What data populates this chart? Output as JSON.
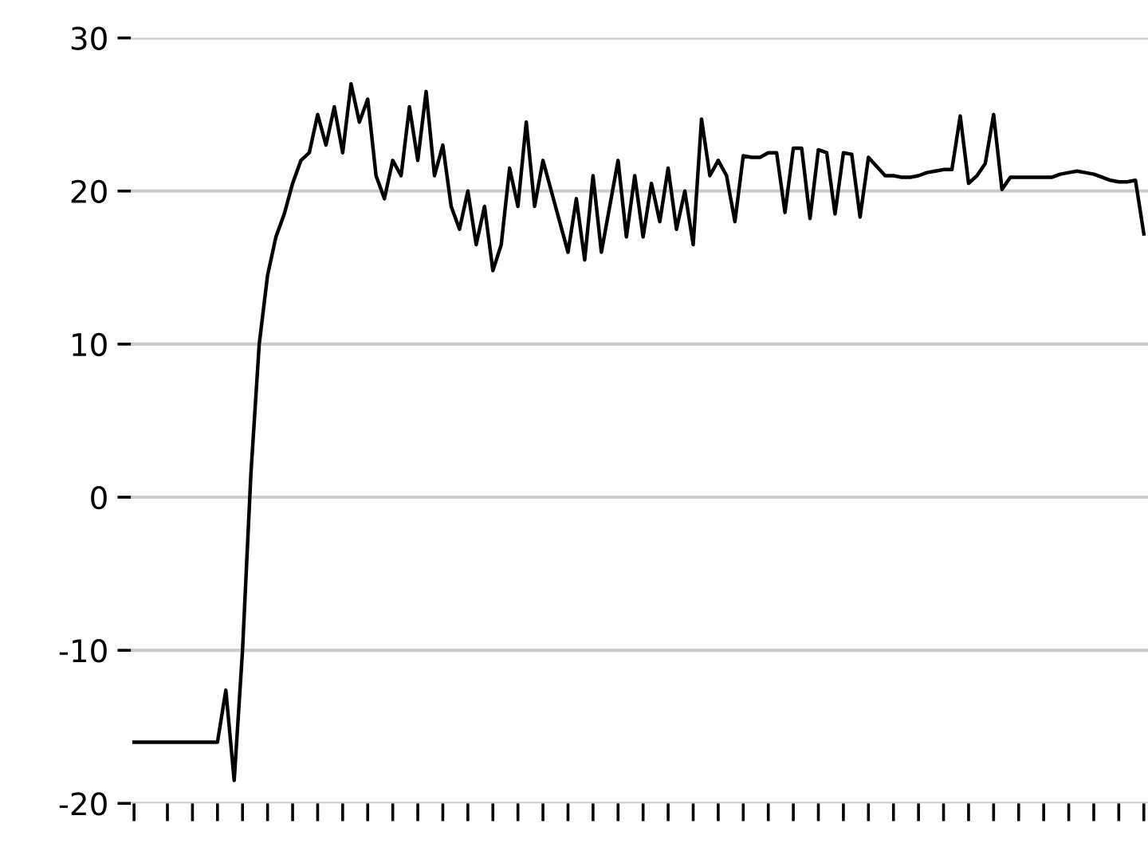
{
  "chart_data": {
    "type": "line",
    "categories": [
      null,
      null,
      null,
      null,
      null,
      null,
      null,
      null,
      null,
      null,
      null,
      null,
      null,
      null,
      null,
      null,
      null,
      null,
      null,
      null,
      null,
      null,
      null,
      null,
      null,
      null,
      null,
      null,
      null,
      null,
      null,
      null,
      null,
      null,
      null,
      null,
      null,
      null,
      null,
      null,
      null,
      null,
      null,
      null,
      null,
      null,
      null,
      null,
      null,
      null,
      null,
      null,
      null,
      null,
      null,
      null,
      null,
      null,
      null,
      null,
      null,
      null,
      null,
      null,
      null,
      null,
      null,
      null,
      null,
      null,
      null,
      null,
      null,
      null,
      null,
      null,
      null,
      null,
      null,
      null,
      null,
      null,
      null,
      null,
      null,
      null,
      null,
      null,
      null,
      null,
      null,
      null,
      null,
      null,
      null,
      null,
      null,
      null,
      null,
      null,
      null,
      null,
      null,
      null,
      null,
      null,
      null,
      null,
      null,
      null,
      null,
      null,
      null,
      null,
      null,
      null,
      null,
      null,
      null,
      null,
      null,
      null
    ],
    "series": [
      {
        "color": "#000000",
        "values": [
          -16,
          -16,
          -16,
          -16,
          -16,
          -16,
          -16,
          -16,
          -16,
          -16,
          -16,
          -12.6,
          -18.5,
          -10,
          1.5,
          10,
          14.5,
          17,
          18.5,
          20.5,
          22,
          22.5,
          25,
          23,
          25.5,
          22.5,
          27,
          24.5,
          26,
          21,
          19.5,
          22,
          21,
          25.5,
          22,
          26.5,
          21,
          23,
          19,
          17.5,
          20,
          16.5,
          19,
          14.8,
          16.5,
          21.5,
          19,
          24.5,
          19,
          22,
          20,
          18,
          16,
          19.5,
          15.5,
          21,
          16,
          19,
          22,
          17,
          21,
          17,
          20.5,
          18,
          21.5,
          17.5,
          20,
          16.5,
          24.7,
          21,
          22,
          21,
          18,
          22.3,
          22.2,
          22.2,
          22.5,
          22.5,
          18.6,
          22.8,
          22.8,
          18.2,
          22.7,
          22.5,
          18.5,
          22.5,
          22.4,
          18.3,
          22.2,
          21.6,
          21,
          21,
          20.9,
          20.9,
          21,
          21.2,
          21.3,
          21.4,
          21.4,
          24.9,
          20.5,
          21,
          21.8,
          25,
          20.1,
          20.9,
          20.9,
          20.9,
          20.9,
          20.9,
          20.9,
          21.1,
          21.2,
          21.3,
          21.2,
          21.1,
          20.9,
          20.7,
          20.6,
          20.6,
          20.7,
          17.2
        ]
      }
    ],
    "ylim": [
      -20,
      30
    ],
    "yticks": [
      -20,
      -10,
      0,
      10,
      20,
      30
    ],
    "grid": "y",
    "tick_labels": "y",
    "line_style": "solid",
    "marker": "none"
  }
}
